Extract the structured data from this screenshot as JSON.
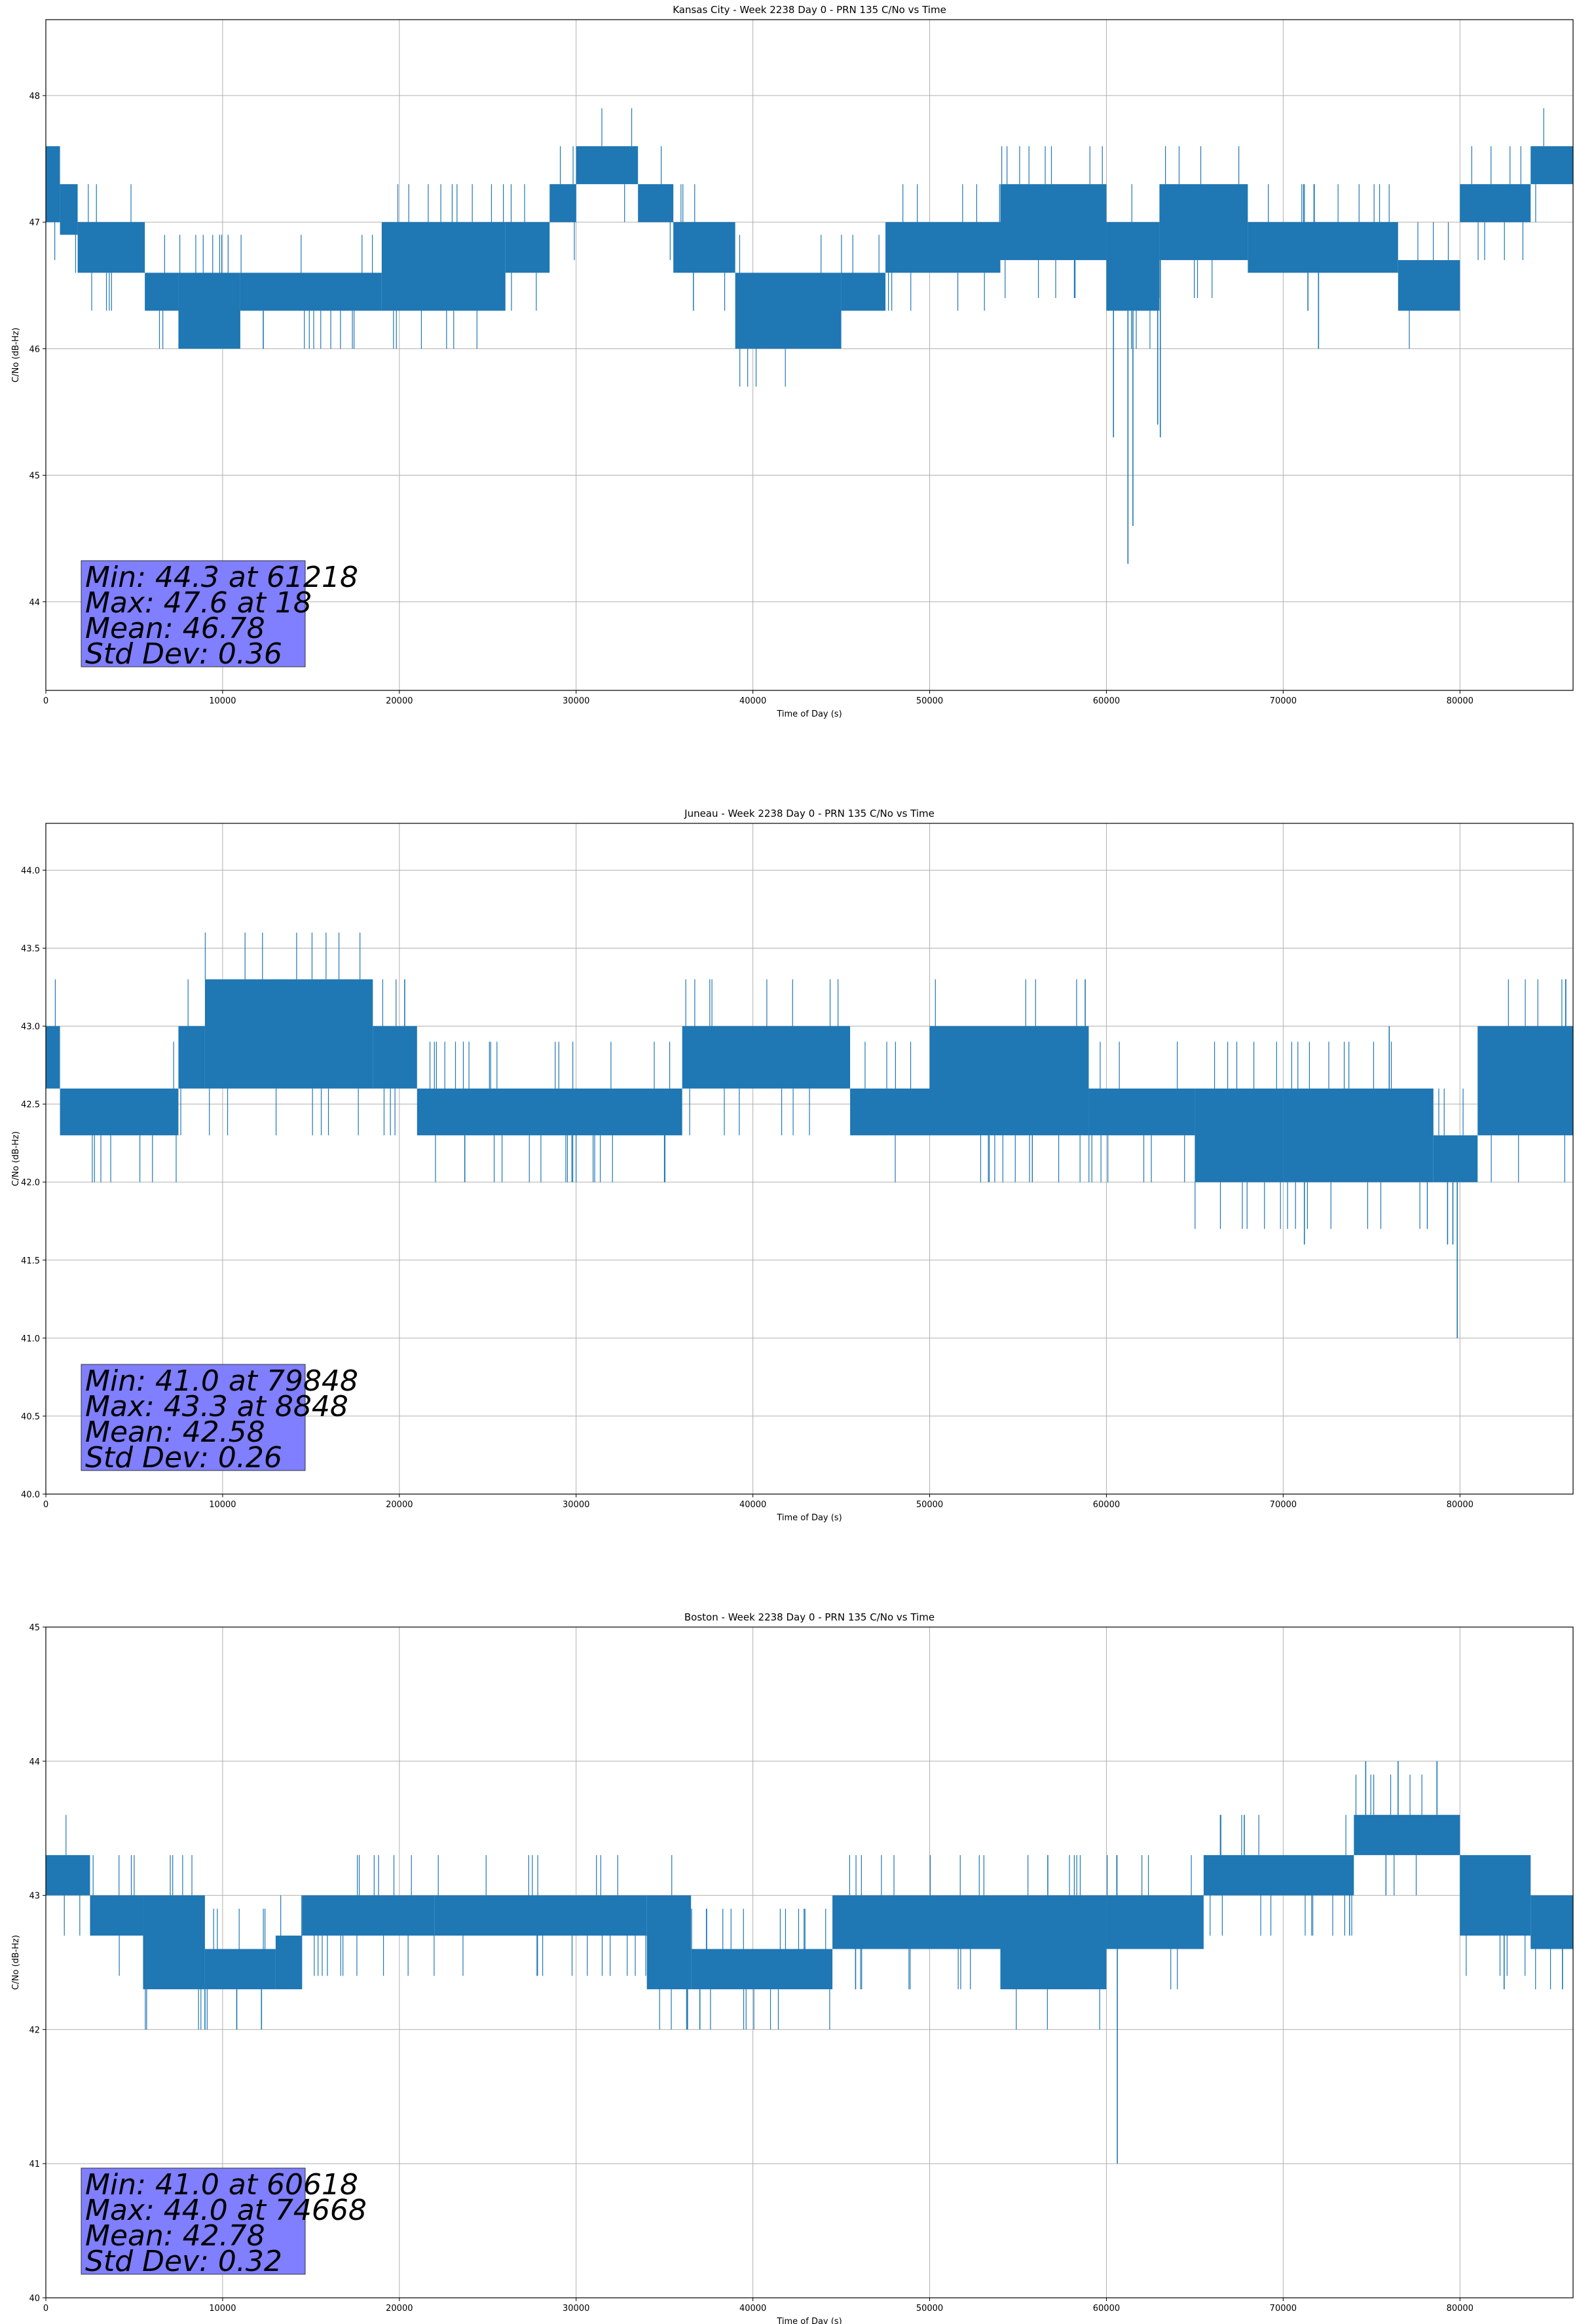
{
  "figure": {
    "line_color": "#1f77b4",
    "grid_color": "#b0b0b0",
    "stats_box_color": "#7f7fff"
  },
  "chart_data": [
    {
      "type": "line",
      "title": "Kansas City - Week 2238 Day 0 - PRN 135 C/No vs Time",
      "xlabel": "Time of Day (s)",
      "ylabel": "C/No (dB-Hz)",
      "xlim": [
        0,
        86400
      ],
      "ylim": [
        43.3,
        48.6
      ],
      "xticks": [
        0,
        10000,
        20000,
        30000,
        40000,
        50000,
        60000,
        70000,
        80000
      ],
      "yticks": [
        44,
        45,
        46,
        47,
        48
      ],
      "grid": true,
      "stats": [
        "Min: 44.3 at 61218",
        "Max: 47.6 at 18",
        "Mean: 46.78",
        "Std Dev: 0.36"
      ],
      "series": [
        {
          "band_segments": [
            {
              "x": [
                0,
                800
              ],
              "lo": 47.0,
              "hi": 47.6
            },
            {
              "x": [
                800,
                1800
              ],
              "lo": 46.9,
              "hi": 47.3
            },
            {
              "x": [
                1800,
                5600
              ],
              "lo": 46.6,
              "hi": 47.0
            },
            {
              "x": [
                5600,
                7500
              ],
              "lo": 46.3,
              "hi": 46.6
            },
            {
              "x": [
                7500,
                11000
              ],
              "lo": 46.0,
              "hi": 46.6
            },
            {
              "x": [
                11000,
                19000
              ],
              "lo": 46.3,
              "hi": 46.6
            },
            {
              "x": [
                19000,
                26000
              ],
              "lo": 46.3,
              "hi": 47.0
            },
            {
              "x": [
                26000,
                28500
              ],
              "lo": 46.6,
              "hi": 47.0
            },
            {
              "x": [
                28500,
                30000
              ],
              "lo": 47.0,
              "hi": 47.3
            },
            {
              "x": [
                30000,
                33500
              ],
              "lo": 47.3,
              "hi": 47.6
            },
            {
              "x": [
                33500,
                35500
              ],
              "lo": 47.0,
              "hi": 47.3
            },
            {
              "x": [
                35500,
                39000
              ],
              "lo": 46.6,
              "hi": 47.0
            },
            {
              "x": [
                39000,
                45000
              ],
              "lo": 46.0,
              "hi": 46.6
            },
            {
              "x": [
                45000,
                47500
              ],
              "lo": 46.3,
              "hi": 46.6
            },
            {
              "x": [
                47500,
                54000
              ],
              "lo": 46.6,
              "hi": 47.0
            },
            {
              "x": [
                54000,
                60000
              ],
              "lo": 46.7,
              "hi": 47.3
            },
            {
              "x": [
                60000,
                63000
              ],
              "lo": 46.3,
              "hi": 47.0
            },
            {
              "x": [
                63000,
                68000
              ],
              "lo": 46.7,
              "hi": 47.3
            },
            {
              "x": [
                68000,
                76500
              ],
              "lo": 46.6,
              "hi": 47.0
            },
            {
              "x": [
                76500,
                80000
              ],
              "lo": 46.3,
              "hi": 46.7
            },
            {
              "x": [
                80000,
                84000
              ],
              "lo": 47.0,
              "hi": 47.3
            },
            {
              "x": [
                84000,
                86400
              ],
              "lo": 47.3,
              "hi": 47.6
            }
          ],
          "spikes": [
            {
              "x": 60400,
              "y": 45.3
            },
            {
              "x": 61218,
              "y": 44.3
            },
            {
              "x": 61500,
              "y": 44.6
            },
            {
              "x": 62900,
              "y": 45.4
            },
            {
              "x": 63050,
              "y": 45.3
            },
            {
              "x": 72000,
              "y": 46.0
            },
            {
              "x": 71400,
              "y": 46.3
            },
            {
              "x": 12300,
              "y": 46.0
            }
          ]
        }
      ]
    },
    {
      "type": "line",
      "title": "Juneau - Week 2238 Day 0 - PRN 135 C/No vs Time",
      "xlabel": "Time of Day (s)",
      "ylabel": "C/No (dB-Hz)",
      "xlim": [
        0,
        86400
      ],
      "ylim": [
        40.0,
        44.3
      ],
      "xticks": [
        0,
        10000,
        20000,
        30000,
        40000,
        50000,
        60000,
        70000,
        80000
      ],
      "yticks": [
        40.0,
        40.5,
        41.0,
        41.5,
        42.0,
        42.5,
        43.0,
        43.5,
        44.0
      ],
      "grid": true,
      "stats": [
        "Min: 41.0 at 79848",
        "Max: 43.3 at 8848",
        "Mean: 42.58",
        "Std Dev: 0.26"
      ],
      "series": [
        {
          "band_segments": [
            {
              "x": [
                0,
                800
              ],
              "lo": 42.6,
              "hi": 43.0
            },
            {
              "x": [
                800,
                7500
              ],
              "lo": 42.3,
              "hi": 42.6
            },
            {
              "x": [
                7500,
                9000
              ],
              "lo": 42.6,
              "hi": 43.0
            },
            {
              "x": [
                9000,
                18500
              ],
              "lo": 42.6,
              "hi": 43.3
            },
            {
              "x": [
                18500,
                21000
              ],
              "lo": 42.6,
              "hi": 43.0
            },
            {
              "x": [
                21000,
                36000
              ],
              "lo": 42.3,
              "hi": 42.6
            },
            {
              "x": [
                36000,
                45500
              ],
              "lo": 42.6,
              "hi": 43.0
            },
            {
              "x": [
                45500,
                50000
              ],
              "lo": 42.3,
              "hi": 42.6
            },
            {
              "x": [
                50000,
                59000
              ],
              "lo": 42.3,
              "hi": 43.0
            },
            {
              "x": [
                59000,
                65000
              ],
              "lo": 42.3,
              "hi": 42.6
            },
            {
              "x": [
                65000,
                70000
              ],
              "lo": 42.0,
              "hi": 42.6
            },
            {
              "x": [
                70000,
                78500
              ],
              "lo": 42.0,
              "hi": 42.6
            },
            {
              "x": [
                78500,
                81000
              ],
              "lo": 42.0,
              "hi": 42.3
            },
            {
              "x": [
                81000,
                86400
              ],
              "lo": 42.3,
              "hi": 43.0
            }
          ],
          "spikes": [
            {
              "x": 23700,
              "y": 42.0
            },
            {
              "x": 35000,
              "y": 42.0
            },
            {
              "x": 58800,
              "y": 43.3
            },
            {
              "x": 71200,
              "y": 41.6
            },
            {
              "x": 79300,
              "y": 41.6
            },
            {
              "x": 79600,
              "y": 41.6
            },
            {
              "x": 79848,
              "y": 41.0
            },
            {
              "x": 76000,
              "y": 43.0
            },
            {
              "x": 20300,
              "y": 43.3
            }
          ]
        }
      ]
    },
    {
      "type": "line",
      "title": "Boston - Week 2238 Day 0 - PRN 135 C/No vs Time",
      "xlabel": "Time of Day (s)",
      "ylabel": "C/No (dB-Hz)",
      "xlim": [
        0,
        86400
      ],
      "ylim": [
        40,
        45
      ],
      "xticks": [
        0,
        10000,
        20000,
        30000,
        40000,
        50000,
        60000,
        70000,
        80000
      ],
      "yticks": [
        40,
        41,
        42,
        43,
        44,
        45
      ],
      "grid": true,
      "stats": [
        "Min: 41.0 at 60618",
        "Max: 44.0 at 74668",
        "Mean: 42.78",
        "Std Dev: 0.32"
      ],
      "series": [
        {
          "band_segments": [
            {
              "x": [
                0,
                2500
              ],
              "lo": 43.0,
              "hi": 43.3
            },
            {
              "x": [
                2500,
                5500
              ],
              "lo": 42.7,
              "hi": 43.0
            },
            {
              "x": [
                5500,
                9000
              ],
              "lo": 42.3,
              "hi": 43.0
            },
            {
              "x": [
                9000,
                13000
              ],
              "lo": 42.3,
              "hi": 42.6
            },
            {
              "x": [
                13000,
                14500
              ],
              "lo": 42.3,
              "hi": 42.7
            },
            {
              "x": [
                14500,
                22000
              ],
              "lo": 42.7,
              "hi": 43.0
            },
            {
              "x": [
                22000,
                34000
              ],
              "lo": 42.7,
              "hi": 43.0
            },
            {
              "x": [
                34000,
                36500
              ],
              "lo": 42.3,
              "hi": 43.0
            },
            {
              "x": [
                36500,
                44500
              ],
              "lo": 42.3,
              "hi": 42.6
            },
            {
              "x": [
                44500,
                54000
              ],
              "lo": 42.6,
              "hi": 43.0
            },
            {
              "x": [
                54000,
                60000
              ],
              "lo": 42.3,
              "hi": 43.0
            },
            {
              "x": [
                60000,
                65500
              ],
              "lo": 42.6,
              "hi": 43.0
            },
            {
              "x": [
                65500,
                74000
              ],
              "lo": 43.0,
              "hi": 43.3
            },
            {
              "x": [
                74000,
                80000
              ],
              "lo": 43.3,
              "hi": 43.6
            },
            {
              "x": [
                80000,
                84000
              ],
              "lo": 42.7,
              "hi": 43.3
            },
            {
              "x": [
                84000,
                86400
              ],
              "lo": 42.6,
              "hi": 43.0
            }
          ],
          "spikes": [
            {
              "x": 9000,
              "y": 42.0
            },
            {
              "x": 10800,
              "y": 42.0
            },
            {
              "x": 12200,
              "y": 42.0
            },
            {
              "x": 36300,
              "y": 42.0
            },
            {
              "x": 37000,
              "y": 42.0
            },
            {
              "x": 60618,
              "y": 41.0
            },
            {
              "x": 74668,
              "y": 44.0
            },
            {
              "x": 76500,
              "y": 44.0
            },
            {
              "x": 78700,
              "y": 44.0
            },
            {
              "x": 67800,
              "y": 43.6
            },
            {
              "x": 82500,
              "y": 42.3
            },
            {
              "x": 85800,
              "y": 42.3
            }
          ]
        }
      ]
    }
  ]
}
